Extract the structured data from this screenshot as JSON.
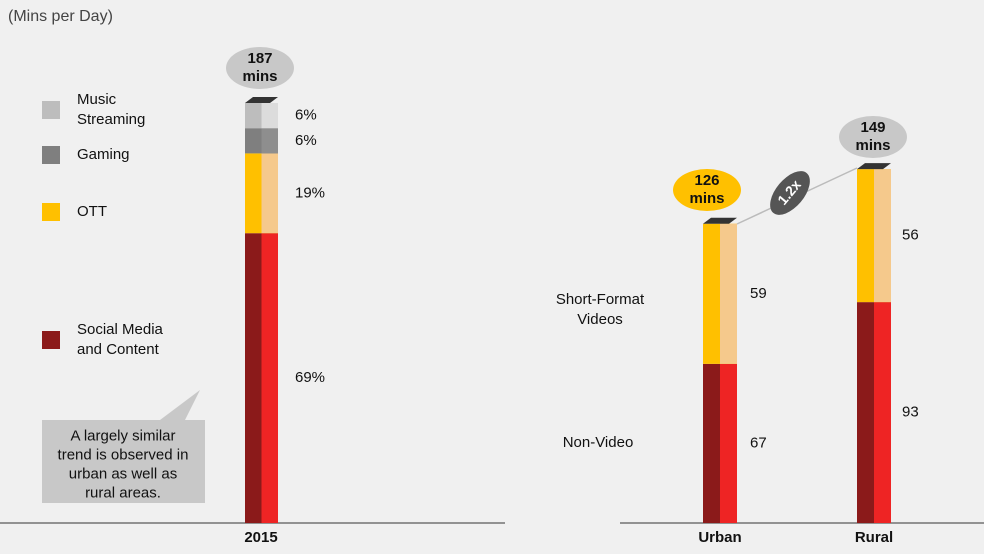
{
  "chart_data": [
    {
      "type": "bar",
      "stacked": true,
      "subtitle": "(Mins per Day)",
      "categories": [
        "2015"
      ],
      "series": [
        {
          "name": "Social Media and Content",
          "color": "#8b1a1a",
          "color_light": "#ee2424",
          "values": [
            69
          ],
          "value_labels": [
            "69%"
          ]
        },
        {
          "name": "OTT",
          "color": "#ffc000",
          "color_light": "#f5c98c",
          "values": [
            19
          ],
          "value_labels": [
            "19%"
          ]
        },
        {
          "name": "Gaming",
          "color": "#7f7f7f",
          "color_light": "#8e8e8e",
          "values": [
            6
          ],
          "value_labels": [
            "6%"
          ]
        },
        {
          "name": "Music Streaming",
          "color": "#bdbdbd",
          "color_light": "#dcdcdc",
          "values": [
            6
          ],
          "value_labels": [
            "6%"
          ]
        }
      ],
      "annotations": [
        "187 mins",
        "A largely similar trend is observed in urban as well as rural areas."
      ]
    },
    {
      "type": "bar",
      "stacked": true,
      "categories": [
        "Urban",
        "Rural"
      ],
      "series": [
        {
          "name": "Non-Video",
          "color": "#8b1a1a",
          "color_light": "#ee2424",
          "values": [
            67,
            93
          ]
        },
        {
          "name": "Short-Format Videos",
          "color": "#ffc000",
          "color_light": "#f5c98c",
          "values": [
            59,
            56
          ]
        }
      ],
      "annotations": [
        "126 mins",
        "149 mins",
        "1.2x"
      ]
    }
  ]
}
